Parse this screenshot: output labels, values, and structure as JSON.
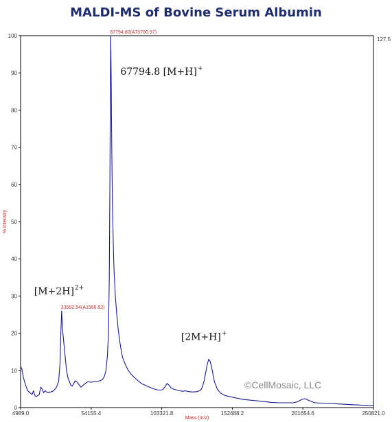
{
  "chart_data": {
    "type": "line",
    "title": "MALDI-MS of Bovine Serum Albumin",
    "xlabel": "Mass (m/z)",
    "ylabel": "% Intensity",
    "xlim": [
      4989.0,
      250821.0
    ],
    "ylim": [
      0,
      100
    ],
    "x_ticks": [
      "4989.0",
      "54155.4",
      "103321.8",
      "152488.2",
      "201654.6",
      "250821.0"
    ],
    "y_ticks": [
      0,
      10,
      20,
      30,
      40,
      50,
      60,
      70,
      80,
      90,
      100
    ],
    "right_axis_max": "127.5",
    "series": [
      {
        "color": "#1a1a8c",
        "x": [
          4989,
          5800,
          7000,
          8500,
          10000,
          11500,
          13000,
          14000,
          15000,
          16000,
          18000,
          19000,
          20000,
          21000,
          22000,
          24000,
          26000,
          28000,
          30000,
          31500,
          32500,
          33000,
          33592,
          34200,
          35000,
          36000,
          37000,
          38000,
          39000,
          40000,
          41000,
          42000,
          43000,
          44000,
          45000,
          46000,
          47000,
          48000,
          50000,
          52000,
          54000,
          56000,
          58000,
          60000,
          62000,
          63500,
          64500,
          65500,
          66200,
          66800,
          67200,
          67500,
          67794.8,
          68100,
          68500,
          69000,
          69500,
          70000,
          71000,
          72000,
          73000,
          74000,
          75000,
          76000,
          78000,
          80000,
          82000,
          84000,
          86000,
          88000,
          90000,
          92000,
          94000,
          96000,
          98000,
          100000,
          102000,
          104000,
          105500,
          107000,
          108500,
          110000,
          112000,
          114000,
          116000,
          118000,
          120000,
          122000,
          124000,
          126000,
          128000,
          129500,
          131000,
          132000,
          133000,
          134000,
          135000,
          136000,
          137000,
          138000,
          139000,
          140000,
          142000,
          144000,
          146000,
          148000,
          150000,
          155000,
          160000,
          165000,
          170000,
          175000,
          180000,
          185000,
          190000,
          195000,
          198000,
          201000,
          203000,
          206000,
          210000,
          215000,
          220000,
          225000,
          230000,
          235000,
          240000,
          245000,
          250821
        ],
        "y": [
          11.0,
          10.5,
          8.0,
          6.0,
          4.5,
          4.0,
          3.5,
          4.5,
          3.2,
          3.0,
          3.5,
          5.5,
          5.0,
          4.0,
          4.5,
          4.0,
          4.2,
          4.5,
          5.5,
          7.0,
          12.0,
          20.0,
          26.0,
          21.0,
          18.0,
          14.0,
          10.0,
          8.0,
          7.0,
          6.0,
          5.8,
          6.5,
          7.2,
          7.0,
          6.5,
          6.0,
          5.5,
          5.8,
          6.5,
          7.0,
          6.8,
          7.0,
          7.0,
          7.2,
          7.5,
          8.5,
          10.0,
          14.0,
          20.0,
          35.0,
          60.0,
          85.0,
          100.0,
          88.0,
          70.0,
          55.0,
          45.0,
          38.0,
          30.0,
          25.0,
          21.0,
          18.0,
          15.5,
          13.5,
          11.5,
          10.0,
          9.0,
          8.2,
          7.5,
          6.8,
          6.3,
          6.0,
          5.6,
          5.3,
          5.0,
          4.8,
          4.7,
          4.8,
          5.5,
          6.5,
          6.0,
          5.2,
          4.9,
          4.7,
          4.5,
          4.4,
          4.5,
          4.3,
          4.2,
          4.2,
          4.3,
          4.5,
          5.0,
          6.0,
          7.5,
          9.5,
          11.5,
          13.0,
          12.5,
          11.0,
          9.0,
          7.0,
          5.0,
          4.0,
          3.5,
          3.2,
          3.0,
          2.6,
          2.2,
          2.0,
          1.8,
          1.6,
          1.4,
          1.3,
          1.3,
          1.3,
          1.6,
          2.2,
          2.4,
          1.9,
          1.3,
          1.2,
          1.1,
          1.0,
          0.9,
          0.8,
          0.7,
          0.6,
          0.5
        ]
      }
    ],
    "peak_labels": [
      {
        "x": 67794.8,
        "y": 100,
        "text": "67794.80(A70780.97)"
      },
      {
        "x": 33592.54,
        "y": 26,
        "text": "33592.54(A1566.92)"
      }
    ],
    "annotations": [
      {
        "x": 67794.8,
        "y": 100,
        "main": "67794.8 [M+H]",
        "sup": "+"
      },
      {
        "x": 33592.54,
        "y": 26,
        "main": "[M+2H]",
        "sup": "2+"
      },
      {
        "x": 134000,
        "y": 13,
        "main": "[2M+H]",
        "sup": "+"
      }
    ],
    "watermark": "©CellMosaic, LLC"
  }
}
